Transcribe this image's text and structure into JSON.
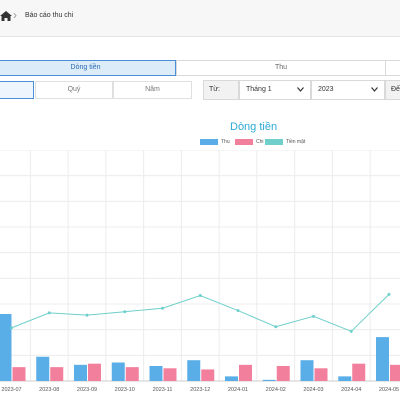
{
  "breadcrumb": {
    "current": "Báo cáo thu chi"
  },
  "tabs": [
    {
      "label": "Dòng tiền",
      "active": true
    },
    {
      "label": "Thu",
      "active": false
    },
    {
      "label": "",
      "active": false
    }
  ],
  "period_buttons": [
    {
      "label": "",
      "active": true
    },
    {
      "label": "Quý",
      "active": false
    },
    {
      "label": "Năm",
      "active": false
    }
  ],
  "filter": {
    "from_label": "Từ:",
    "month": "Tháng 1",
    "year": "2023",
    "to_label": "Đến"
  },
  "colors": {
    "thu": "#5aaee8",
    "chi": "#f27f9c",
    "cash": "#6fcfcb",
    "accent": "#2ba8d6"
  },
  "chart_data": {
    "type": "bar",
    "title": "Dòng tiền",
    "categories": [
      "2023-07",
      "2023-08",
      "2023-09",
      "2023-10",
      "2023-11",
      "2023-12",
      "2024-01",
      "2024-02",
      "2024-03",
      "2024-04",
      "2024-05"
    ],
    "series": [
      {
        "name": "Thu",
        "type": "bar",
        "values": [
          29,
          10.5,
          7,
          8,
          6.5,
          9,
          2,
          0.5,
          9,
          2,
          19
        ]
      },
      {
        "name": "Chi",
        "type": "bar",
        "values": [
          6,
          6,
          7.5,
          6,
          5.5,
          5,
          7,
          6.5,
          5.5,
          7.5,
          7
        ]
      },
      {
        "name": "Tiền mặt",
        "type": "line",
        "values": [
          23,
          29.5,
          28.5,
          30,
          31.5,
          37,
          30.5,
          23.5,
          28,
          21.5,
          37.5
        ]
      }
    ],
    "ylim": [
      0,
      100
    ],
    "grid": true,
    "legend_position": "top-center"
  }
}
